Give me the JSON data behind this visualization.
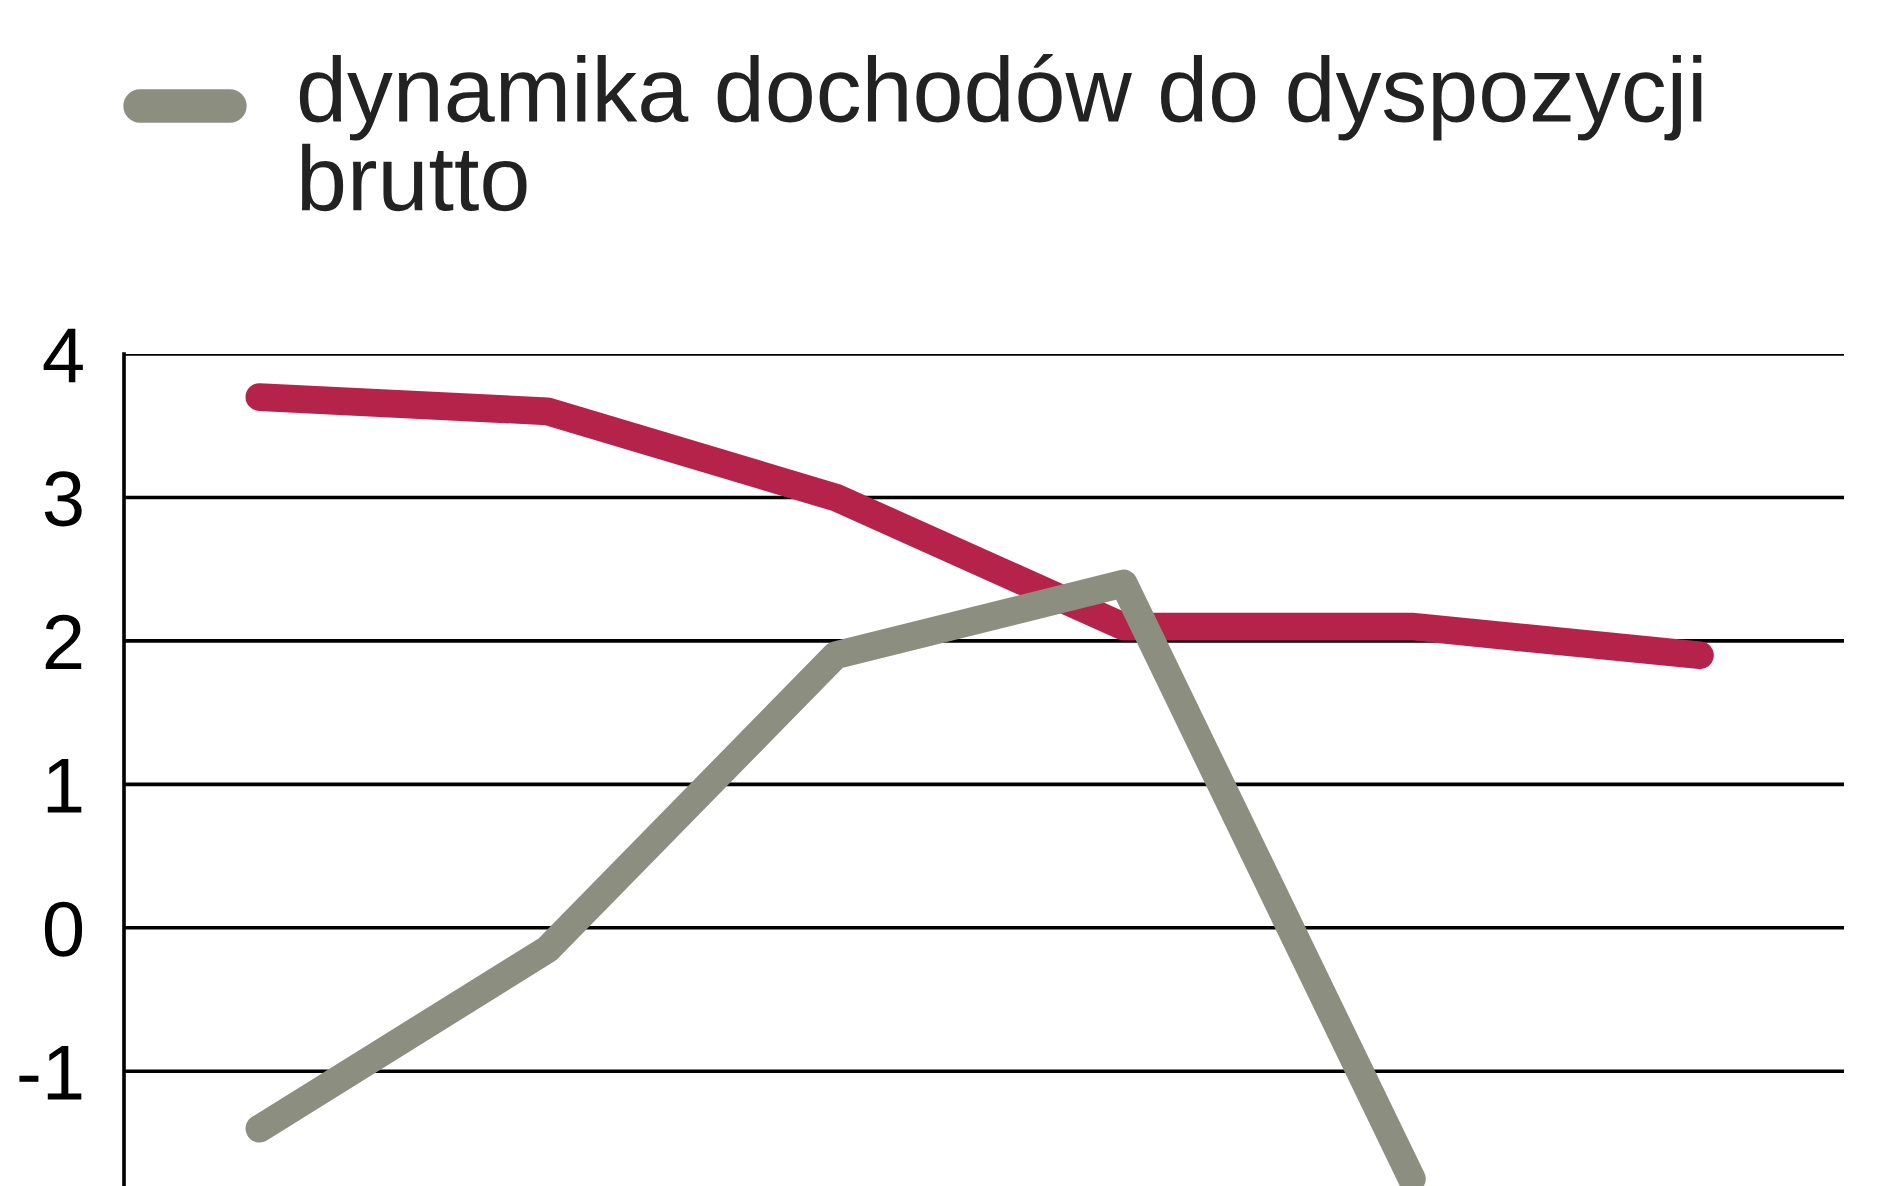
{
  "chart_data": {
    "type": "line",
    "categories": [
      null,
      null,
      null,
      null,
      null,
      null
    ],
    "series": [
      {
        "color": "#b5234a",
        "values": [
          3.7,
          3.6,
          3.0,
          2.1,
          2.1,
          1.9
        ]
      },
      {
        "name": "dynamika dochodów do dyspozycji brutto",
        "color": "#8c8f80",
        "values": [
          -1.4,
          -0.15,
          1.9,
          2.4,
          -1.75,
          null
        ]
      }
    ],
    "ylim": [
      -1.8,
      4
    ],
    "yticks": [
      -1,
      0,
      1,
      2,
      3,
      4
    ],
    "grid": "y",
    "legend": "top",
    "line_style": "solid"
  }
}
